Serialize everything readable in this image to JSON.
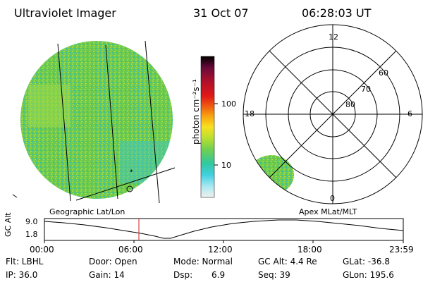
{
  "header": {
    "title": "Ultraviolet Imager",
    "date": "31 Oct 07",
    "time": "06:28:03 UT"
  },
  "colorbar": {
    "unit_label": "photon cm⁻²s⁻¹",
    "ticks": [
      "100",
      "10"
    ],
    "colors": [
      "#000000",
      "#6a0a3a",
      "#b0102a",
      "#e01818",
      "#f06010",
      "#f8a010",
      "#f8e020",
      "#b8e030",
      "#70d050",
      "#30c8a0",
      "#40d0e0",
      "#a8e8f0",
      "#f0f0f0"
    ]
  },
  "left_panel": {
    "caption": "Geographic Lat/Lon",
    "fill_color": "#6cc94c"
  },
  "polar_plot": {
    "caption": "Apex MLat/MLT",
    "mlt_labels": {
      "top": "12",
      "left": "18",
      "right": "6",
      "bottom": "0"
    },
    "lat_labels": [
      "60",
      "70",
      "80"
    ]
  },
  "altitude_strip": {
    "ylabel": "GC Alt",
    "ymax": "9.0",
    "ymin": "1.8",
    "x_ticks": [
      "00:00",
      "06:00",
      "12:00",
      "18:00",
      "23:59"
    ],
    "current_marker_color": "#cc2222"
  },
  "info": {
    "flt": "Flt: LBHL",
    "ip": "IP: 36.0",
    "door": "Door: Open",
    "gain": "Gain: 14",
    "mode": "Mode: Normal",
    "dsp_label": "Dsp:",
    "dsp_value": "6.9",
    "gc_alt": "GC Alt: 4.4 Re",
    "seq": "Seq: 39",
    "glat": "GLat: -36.8",
    "glon": "GLon: 195.6"
  }
}
